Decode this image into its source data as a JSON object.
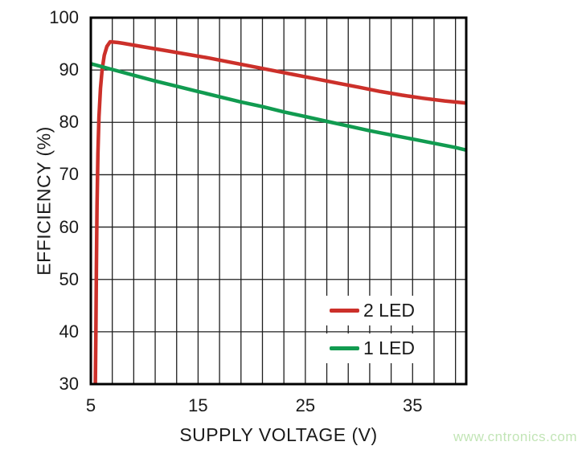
{
  "watermark": {
    "text": "www.cntronics.com",
    "color": "#c2e5b6"
  },
  "colors": {
    "grid": "#1f1f1f",
    "frame": "#000000",
    "text": "#1a1a1a",
    "series_2led": "#cc302a",
    "series_1led": "#119b50"
  },
  "chart_data": {
    "type": "line",
    "title": "",
    "xlabel": "SUPPLY VOLTAGE (V)",
    "ylabel": "EFFICIENCY (%)",
    "xlim": [
      5,
      40
    ],
    "ylim": [
      30,
      100
    ],
    "x_ticks": [
      5,
      15,
      25,
      35
    ],
    "y_ticks": [
      100,
      90,
      80,
      70,
      60,
      50,
      40,
      30
    ],
    "x_grid_step": 2,
    "y_grid_step": 10,
    "grid": true,
    "legend_position": "lower right",
    "series": [
      {
        "name": "2 LED",
        "color": "#cc302a",
        "points": [
          [
            5.42,
            30
          ],
          [
            5.47,
            40
          ],
          [
            5.52,
            52
          ],
          [
            5.58,
            64
          ],
          [
            5.66,
            74
          ],
          [
            5.76,
            81
          ],
          [
            5.9,
            86.5
          ],
          [
            6.05,
            90
          ],
          [
            6.25,
            92.8
          ],
          [
            6.5,
            94.5
          ],
          [
            6.8,
            95.4
          ],
          [
            7.5,
            95.25
          ],
          [
            8,
            95.1
          ],
          [
            10,
            94.4
          ],
          [
            12,
            93.7
          ],
          [
            14,
            93.0
          ],
          [
            16,
            92.3
          ],
          [
            18,
            91.5
          ],
          [
            20,
            90.7
          ],
          [
            22,
            89.9
          ],
          [
            24,
            89.1
          ],
          [
            26,
            88.3
          ],
          [
            28,
            87.5
          ],
          [
            30,
            86.7
          ],
          [
            32,
            85.9
          ],
          [
            34,
            85.2
          ],
          [
            36,
            84.6
          ],
          [
            38,
            84.1
          ],
          [
            40,
            83.7
          ]
        ]
      },
      {
        "name": "1 LED",
        "color": "#119b50",
        "points": [
          [
            5,
            91.2
          ],
          [
            7,
            90.1
          ],
          [
            9,
            89.0
          ],
          [
            11,
            87.9
          ],
          [
            13,
            86.9
          ],
          [
            15,
            85.9
          ],
          [
            17,
            84.9
          ],
          [
            19,
            83.9
          ],
          [
            21,
            83.0
          ],
          [
            23,
            82.0
          ],
          [
            25,
            81.1
          ],
          [
            27,
            80.2
          ],
          [
            29,
            79.3
          ],
          [
            31,
            78.4
          ],
          [
            33,
            77.6
          ],
          [
            35,
            76.8
          ],
          [
            37,
            76.0
          ],
          [
            39,
            75.2
          ],
          [
            40,
            74.7
          ]
        ]
      }
    ]
  }
}
